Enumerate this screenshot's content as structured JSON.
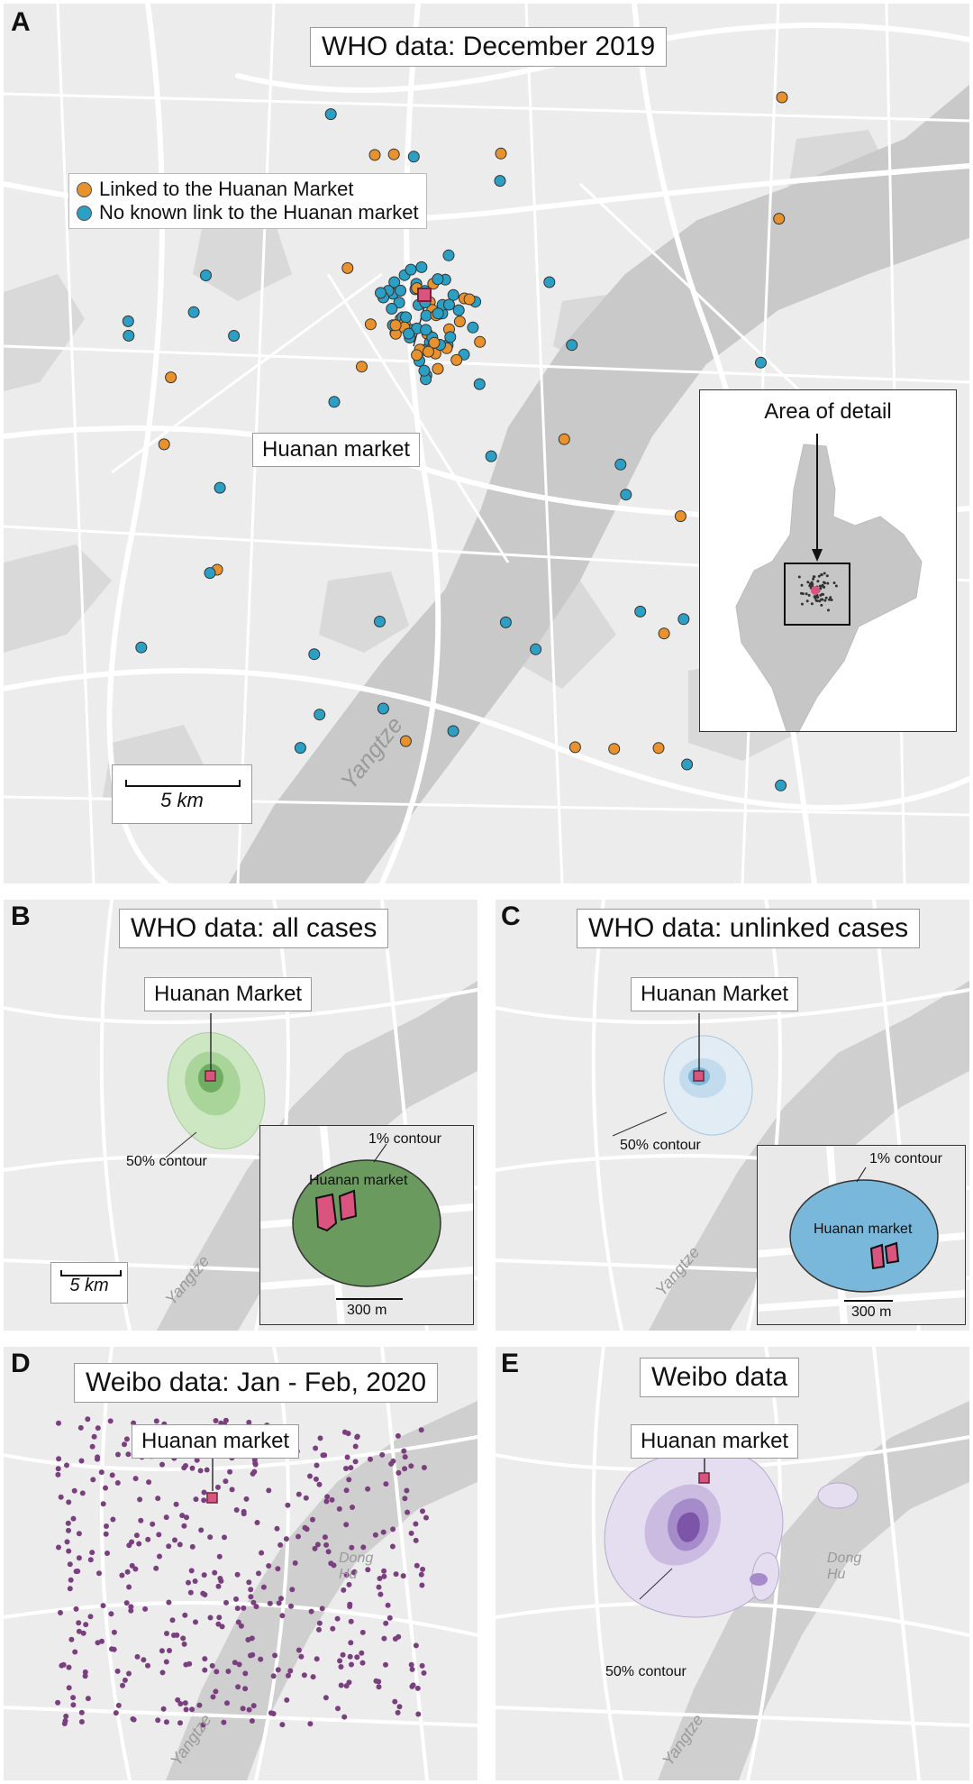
{
  "panel_a": {
    "letter": "A",
    "title": "WHO data: December 2019",
    "legend": [
      {
        "label": "Linked to the Huanan Market",
        "color": "#e8922e"
      },
      {
        "label": "No known link to the Huanan market",
        "color": "#2b9fc4"
      }
    ],
    "market_label": "Huanan market",
    "inset_title": "Area of detail",
    "river_label": "Yangtze",
    "scale_label": "5 km"
  },
  "panel_b": {
    "letter": "B",
    "title": "WHO data: all cases",
    "market_label": "Huanan Market",
    "contour_label": "50% contour",
    "inset_contour_label": "1% contour",
    "inset_market_label": "Huanan market",
    "inset_scale_label": "300 m",
    "scale_label": "5 km",
    "river_label": "Yangtze"
  },
  "panel_c": {
    "letter": "C",
    "title": "WHO data: unlinked cases",
    "market_label": "Huanan Market",
    "contour_label": "50% contour",
    "inset_contour_label": "1% contour",
    "inset_market_label": "Huanan market",
    "inset_scale_label": "300 m",
    "river_label": "Yangtze"
  },
  "panel_d": {
    "letter": "D",
    "title": "Weibo data: Jan - Feb, 2020",
    "market_label": "Huanan market",
    "lake_label": "Dong Hu",
    "river_label": "Yangtze"
  },
  "panel_e": {
    "letter": "E",
    "title": "Weibo data",
    "market_label": "Huanan market",
    "contour_label": "50% contour",
    "lake_label": "Dong Hu",
    "river_label": "Yangtze"
  },
  "colors": {
    "linked": "#e8922e",
    "unlinked": "#2b9fc4",
    "market": "#d9557f",
    "weibo_dots": "#7a3f7e",
    "green_contour": "#6aa860",
    "blue_contour": "#7fb8d8",
    "purple_contour": "#7d55a8"
  }
}
